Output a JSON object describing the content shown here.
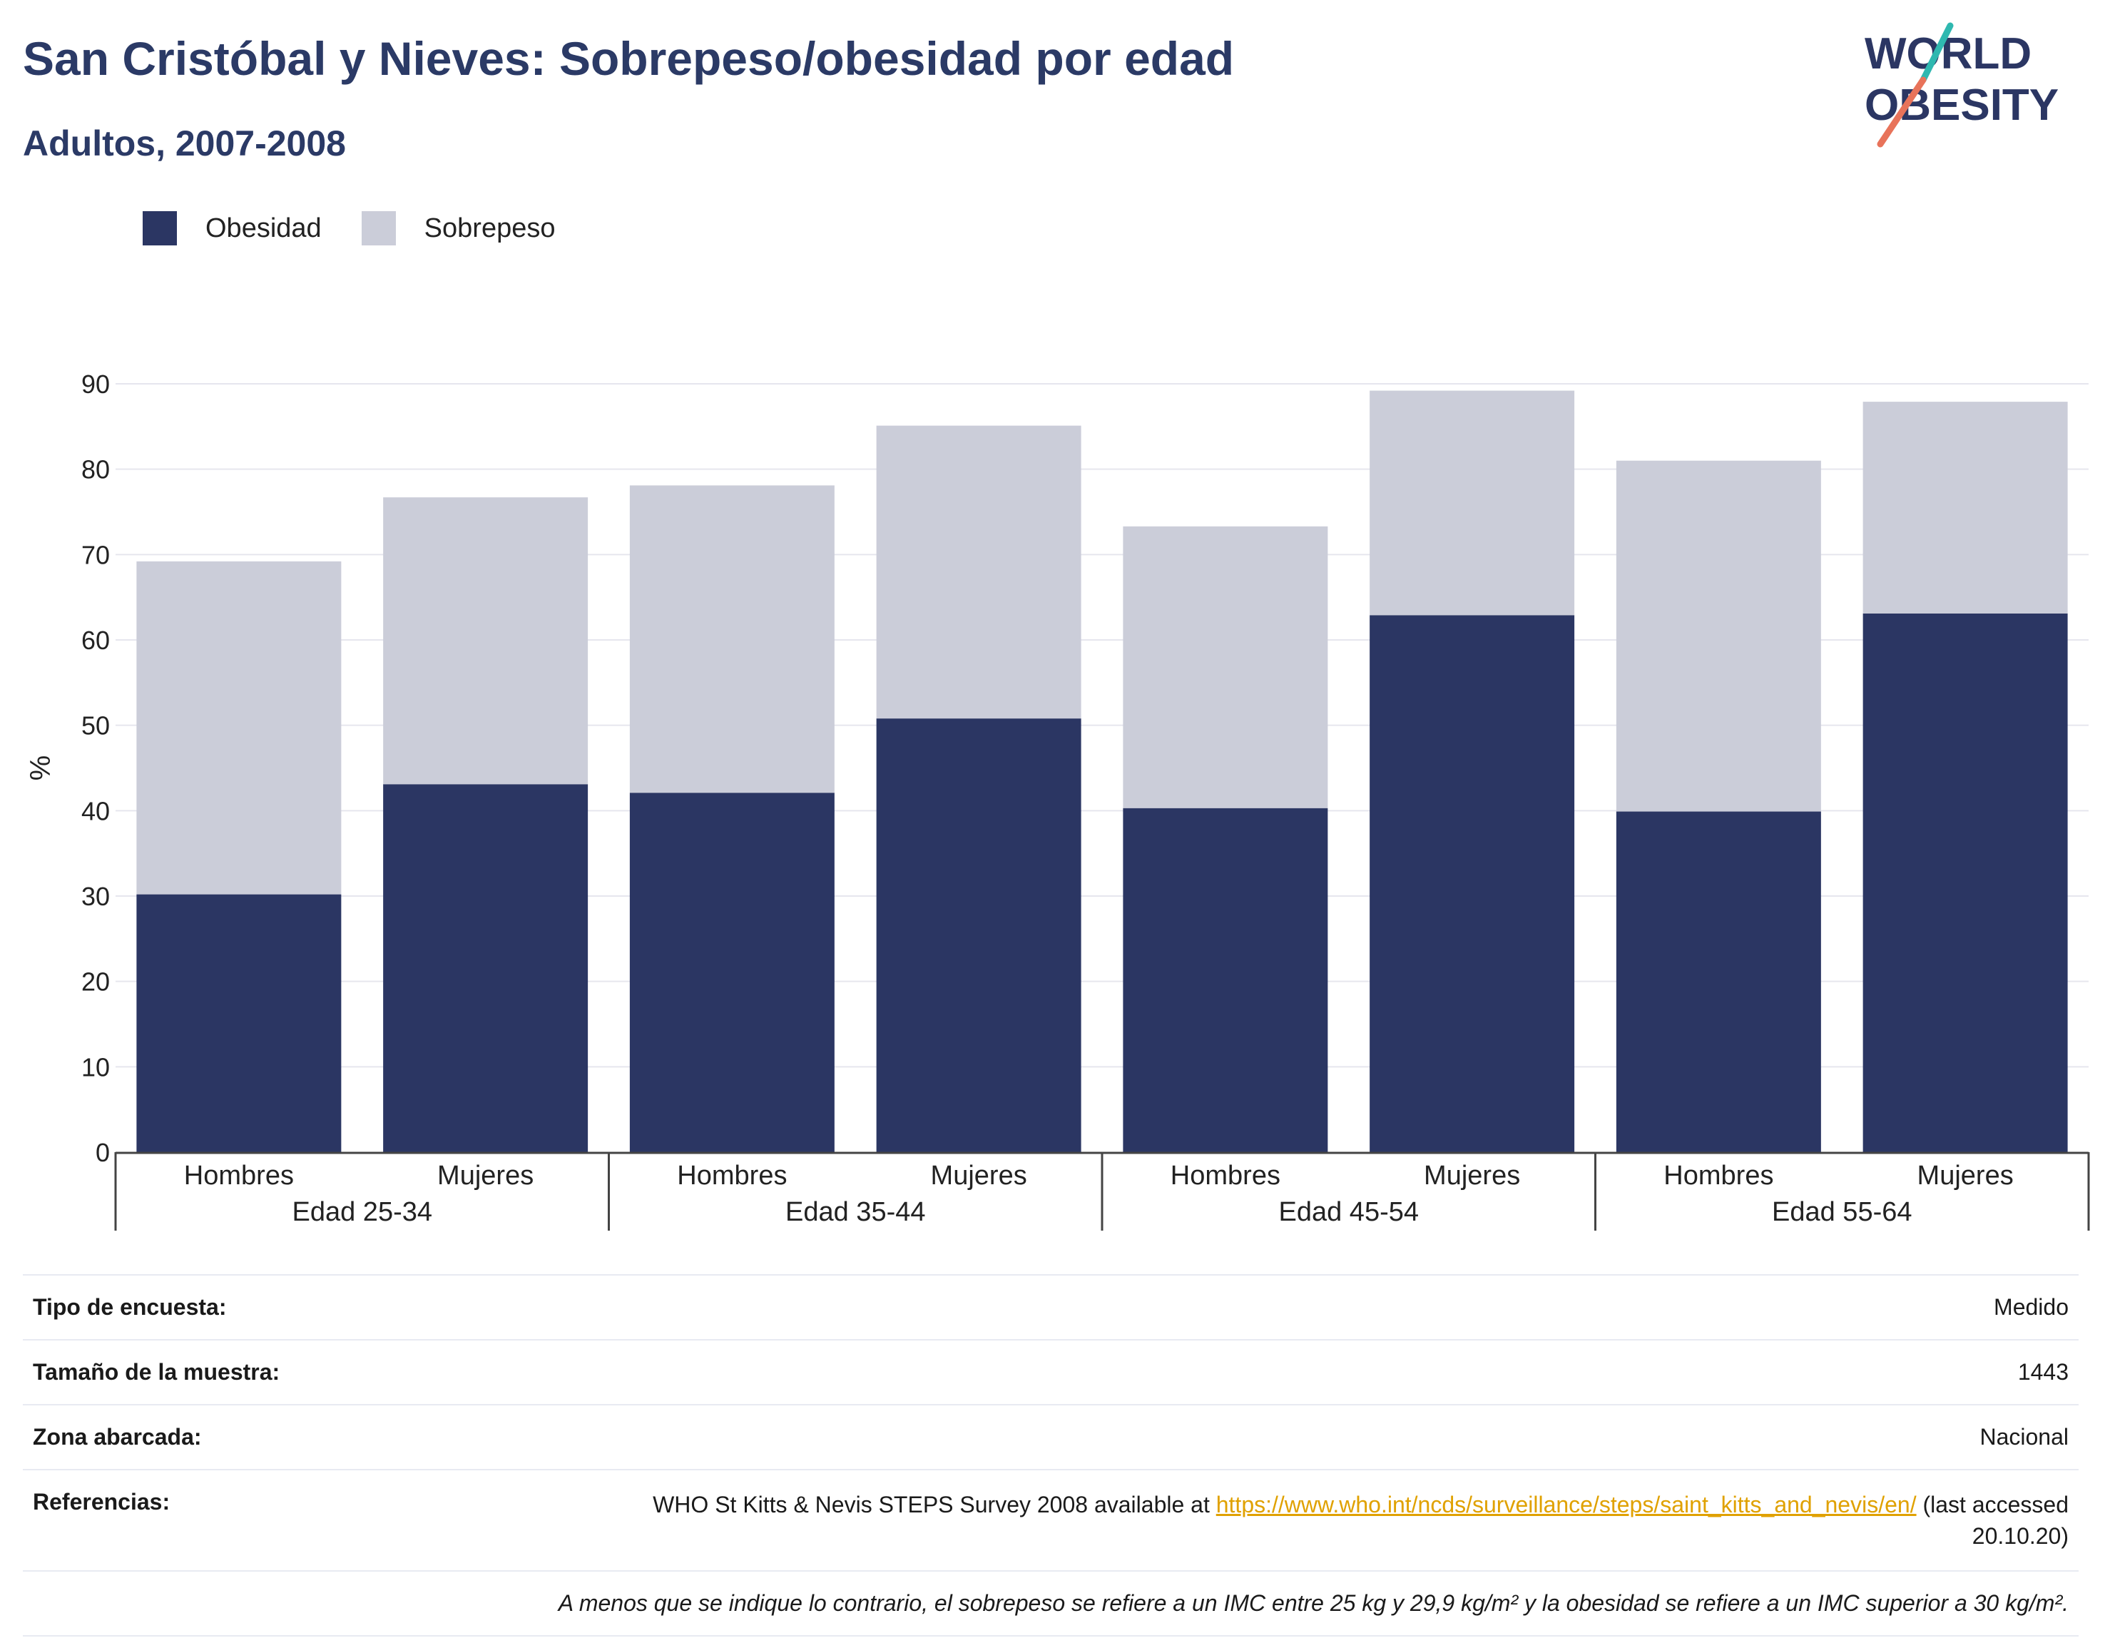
{
  "header": {
    "title": "San Cristóbal y Nieves: Sobrepeso/obesidad por edad",
    "subtitle": "Adultos, 2007-2008"
  },
  "logo": {
    "line1": "WORLD",
    "line2": "OBESITY"
  },
  "chart_data": {
    "type": "bar",
    "stacked": true,
    "categories": [
      "Hombres",
      "Mujeres",
      "Hombres",
      "Mujeres",
      "Hombres",
      "Mujeres",
      "Hombres",
      "Mujeres"
    ],
    "groups": [
      "Edad 25-34",
      "Edad 35-44",
      "Edad 45-54",
      "Edad 55-64"
    ],
    "series": [
      {
        "name": "Obesidad",
        "color": "#2b3663",
        "values": [
          30.2,
          43.1,
          42.1,
          50.8,
          40.3,
          62.9,
          39.9,
          63.1
        ]
      },
      {
        "name": "Sobrepeso",
        "color": "#cbcdd9",
        "values": [
          39.0,
          33.6,
          36.0,
          34.3,
          33.0,
          26.3,
          41.1,
          24.8
        ]
      }
    ],
    "ylabel": "%",
    "xlabel": "",
    "ylim": [
      0,
      90
    ],
    "yticks": [
      "0",
      "10",
      "20",
      "30",
      "40",
      "50",
      "60",
      "70",
      "80",
      "90"
    ],
    "grid": true,
    "legend_position": "top-left"
  },
  "info": {
    "survey_type_label": "Tipo de encuesta:",
    "survey_type_value": "Medido",
    "sample_size_label": "Tamaño de la muestra:",
    "sample_size_value": "1443",
    "area_label": "Zona abarcada:",
    "area_value": "Nacional",
    "references_label": "Referencias:",
    "references_prefix": "WHO St Kitts & Nevis STEPS Survey 2008 available at ",
    "references_link": "https://www.who.int/ncds/surveillance/steps/saint_kitts_and_nevis/en/",
    "references_suffix": " (last accessed 20.10.20)",
    "note": "A menos que se indique lo contrario, el sobrepeso se refiere a un IMC entre 25 kg y 29,9 kg/m² y la obesidad se refiere a un IMC superior a 30 kg/m²."
  }
}
